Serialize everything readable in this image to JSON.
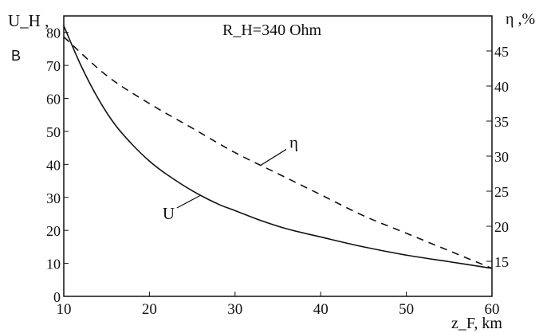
{
  "chart_data": {
    "type": "line",
    "title": "R_H=340 Ohm",
    "xlabel": "z_F, km",
    "ylabel_left": "U_H ,",
    "ylabel_left_unit": "B",
    "ylabel_right": "η ,%",
    "xlim": [
      10,
      60
    ],
    "ylim_left": [
      0,
      85
    ],
    "ylim_right": [
      10,
      50
    ],
    "x_ticks": [
      "10",
      "20",
      "30",
      "40",
      "50",
      "60"
    ],
    "y_left_ticks": [
      "0",
      "10",
      "20",
      "30",
      "40",
      "50",
      "60",
      "70",
      "80"
    ],
    "y_right_ticks": [
      "15",
      "20",
      "25",
      "30",
      "35",
      "40",
      "45"
    ],
    "grid": false,
    "series": [
      {
        "name": "U",
        "axis": "left",
        "style": "solid",
        "color": "#111111",
        "x": [
          10,
          12,
          14,
          16,
          18,
          20,
          22,
          25,
          28,
          30,
          33,
          36,
          40,
          45,
          50,
          55,
          60
        ],
        "values": [
          82,
          70,
          60,
          52,
          46,
          41,
          37,
          32,
          28,
          26,
          23,
          20.5,
          18,
          15,
          12.5,
          10.5,
          8.5
        ]
      },
      {
        "name": "η",
        "axis": "right",
        "style": "dashed",
        "color": "#111111",
        "x": [
          10,
          15,
          20,
          25,
          30,
          35,
          40,
          45,
          50,
          55,
          60
        ],
        "values": [
          47,
          41.5,
          37.5,
          34,
          30.5,
          27.5,
          24.5,
          21.5,
          19,
          16.5,
          14
        ]
      }
    ],
    "annotations": [
      {
        "label": "U",
        "series": "U",
        "at_x": 26
      },
      {
        "label": "η",
        "series": "η",
        "at_x": 33
      }
    ]
  }
}
